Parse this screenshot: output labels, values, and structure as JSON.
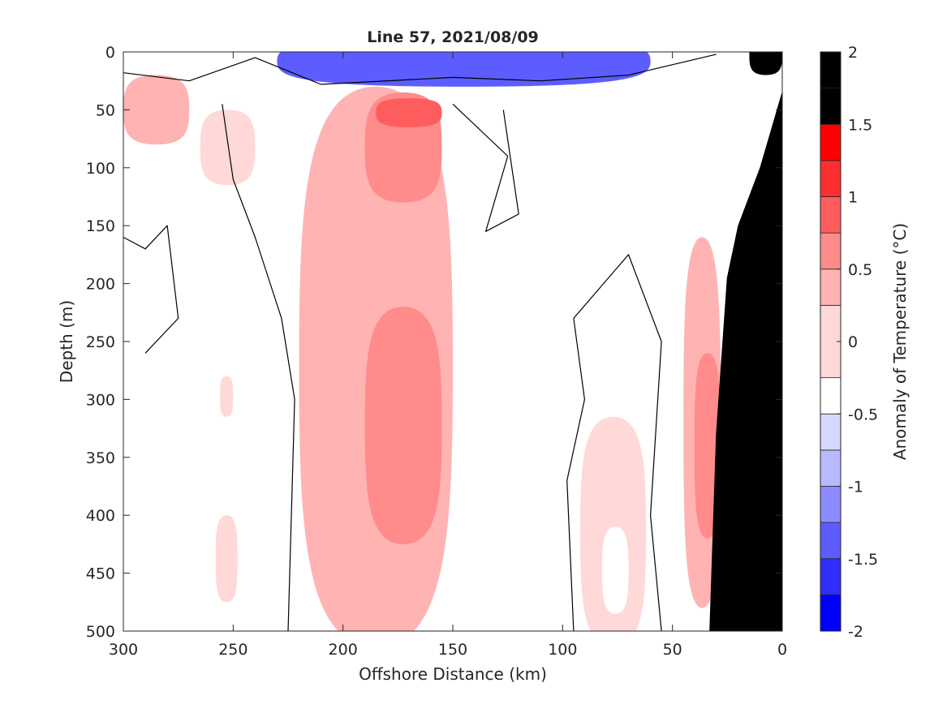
{
  "chart_data": {
    "type": "heatmap",
    "title": "Line 57, 2021/08/09",
    "xlabel": "Offshore Distance (km)",
    "ylabel": "Depth (m)",
    "xlim": [
      300,
      0
    ],
    "ylim": [
      500,
      0
    ],
    "x_reversed": true,
    "y_reversed": true,
    "x_ticks": [
      300,
      250,
      200,
      150,
      100,
      50,
      0
    ],
    "x_tick_labels": [
      "300",
      "250",
      "200",
      "150",
      "100",
      "50",
      "0"
    ],
    "y_ticks": [
      0,
      50,
      100,
      150,
      200,
      250,
      300,
      350,
      400,
      450,
      500
    ],
    "y_tick_labels": [
      "0",
      "50",
      "100",
      "150",
      "200",
      "250",
      "300",
      "350",
      "400",
      "450",
      "500"
    ],
    "colorbar": {
      "label": "Anomaly of Temperature (°C)",
      "range": [
        -2,
        2
      ],
      "ticks": [
        -2,
        -1.5,
        -1,
        -0.5,
        0,
        0.5,
        1,
        1.5,
        2
      ],
      "tick_labels": [
        "-2",
        "-1.5",
        "-1",
        "-0.5",
        "0",
        "0.5",
        "1",
        "1.5",
        "2"
      ],
      "levels": [
        -2,
        -1.75,
        -1.5,
        -1.25,
        -1,
        -0.75,
        -0.5,
        -0.25,
        0.25,
        0.5,
        0.75,
        1,
        1.25,
        1.5,
        1.75,
        2
      ],
      "colors": [
        "#0000ff",
        "#2e2eff",
        "#5d5dff",
        "#8b8bff",
        "#b9b9ff",
        "#d8d8ff",
        "#ffffff",
        "#ffd8d8",
        "#ffb3b3",
        "#ff8b8b",
        "#ff5d5d",
        "#ff2e2e",
        "#ff0000"
      ]
    },
    "zero_contour": true,
    "bathymetry_color": "#000000",
    "features": [
      {
        "kind": "warm",
        "anomaly": 0.25,
        "x_range_km": [
          220,
          150
        ],
        "depth_range_m": [
          30,
          500
        ]
      },
      {
        "kind": "warm",
        "anomaly": 0.5,
        "x_range_km": [
          190,
          155
        ],
        "depth_range_m": [
          35,
          130
        ]
      },
      {
        "kind": "warm",
        "anomaly": 0.75,
        "x_range_km": [
          185,
          155
        ],
        "depth_range_m": [
          40,
          65
        ]
      },
      {
        "kind": "warm",
        "anomaly": 0.5,
        "x_range_km": [
          190,
          155
        ],
        "depth_range_m": [
          220,
          425
        ]
      },
      {
        "kind": "warm",
        "anomaly": 0.25,
        "x_range_km": [
          45,
          28
        ],
        "depth_range_m": [
          160,
          480
        ]
      },
      {
        "kind": "warm",
        "anomaly": 0.5,
        "x_range_km": [
          40,
          28
        ],
        "depth_range_m": [
          260,
          420
        ]
      },
      {
        "kind": "warm",
        "anomaly": 0.25,
        "x_range_km": [
          300,
          270
        ],
        "depth_range_m": [
          20,
          80
        ]
      },
      {
        "kind": "warm",
        "anomaly": 1.75,
        "x_range_km": [
          15,
          0
        ],
        "depth_range_m": [
          0,
          20
        ]
      },
      {
        "kind": "cold",
        "anomaly": -1.5,
        "x_range_km": [
          230,
          60
        ],
        "depth_range_m": [
          0,
          30
        ]
      },
      {
        "kind": "cold",
        "anomaly": -0.25,
        "x_range_km": [
          265,
          240
        ],
        "depth_range_m": [
          50,
          115
        ]
      },
      {
        "kind": "cold",
        "anomaly": -0.25,
        "x_range_km": [
          92,
          62
        ],
        "depth_range_m": [
          315,
          500
        ]
      },
      {
        "kind": "cold",
        "anomaly": -0.5,
        "x_range_km": [
          82,
          70
        ],
        "depth_range_m": [
          410,
          485
        ]
      },
      {
        "kind": "cold",
        "anomaly": -0.25,
        "x_range_km": [
          258,
          248
        ],
        "depth_range_m": [
          400,
          475
        ]
      },
      {
        "kind": "cold",
        "anomaly": -0.25,
        "x_range_km": [
          256,
          250
        ],
        "depth_range_m": [
          280,
          315
        ]
      }
    ],
    "bathymetry_profile": [
      [
        0,
        35
      ],
      [
        10,
        100
      ],
      [
        16,
        130
      ],
      [
        20,
        150
      ],
      [
        25,
        195
      ],
      [
        30,
        330
      ],
      [
        33,
        500
      ]
    ]
  }
}
